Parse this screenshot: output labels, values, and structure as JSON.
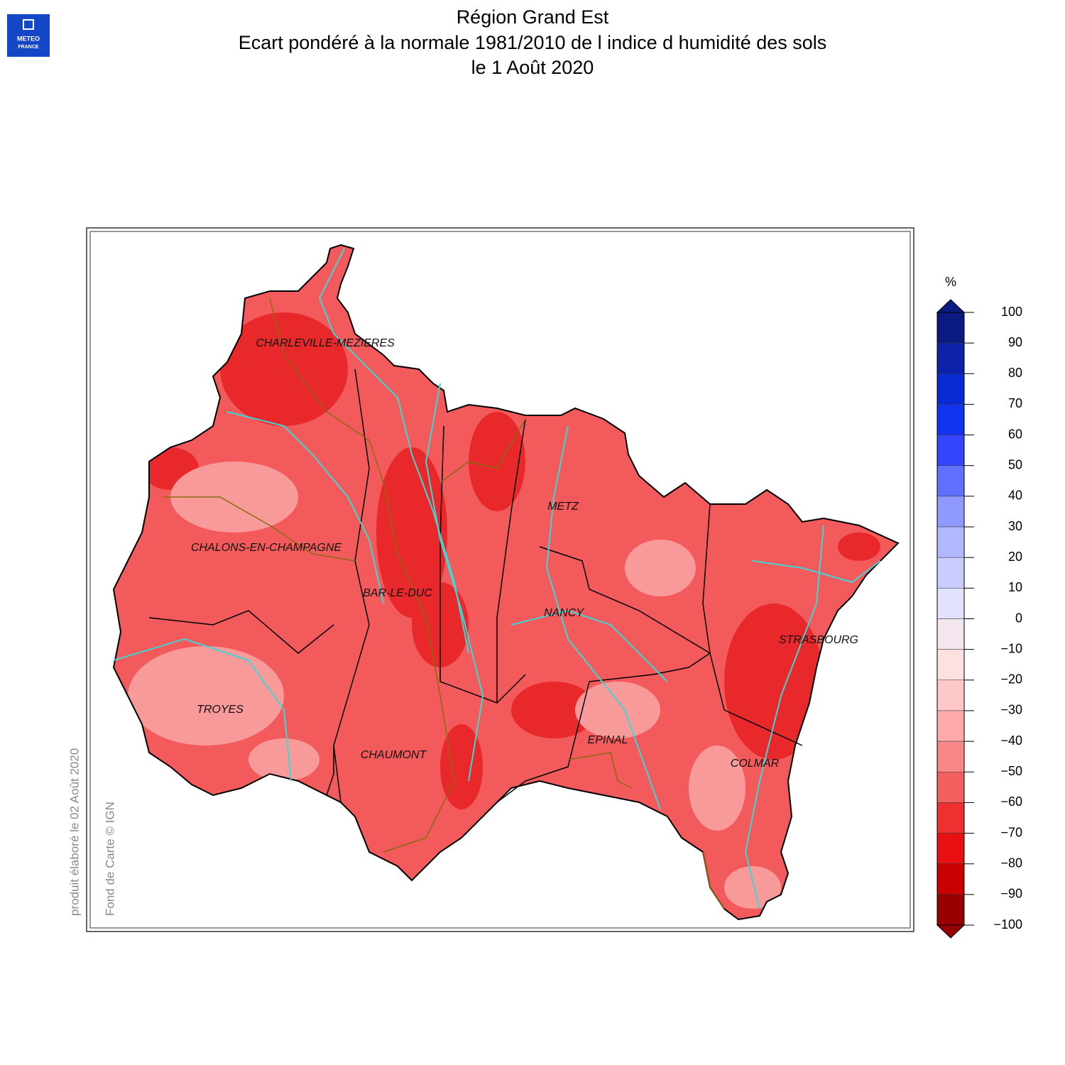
{
  "header": {
    "logo": [
      "METEO",
      "FRANCE"
    ],
    "title": [
      "Région Grand Est",
      "Ecart pondéré à la normale 1981/2010 de l indice d humidité des sols",
      "le 1 Août 2020"
    ]
  },
  "map": {
    "cities": [
      "CHARLEVILLE-MEZIERES",
      "METZ",
      "CHALONS-EN-CHAMPAGNE",
      "BAR-LE-DUC",
      "NANCY",
      "STRASBOURG",
      "TROYES",
      "EPINAL",
      "CHAUMONT",
      "COLMAR"
    ],
    "base_color": "#f25a5c",
    "dark_color": "#e8282a",
    "light_color": "#f99a9a",
    "border_color": "#000000",
    "river_color": "#3fd6d6",
    "basin_color": "#8a6a10"
  },
  "colorbar": {
    "unit": "%",
    "ticks": [
      100,
      90,
      80,
      70,
      60,
      50,
      40,
      30,
      20,
      10,
      0,
      {
        "value": -10,
        "label": "−10"
      },
      {
        "value": -20,
        "label": "−20"
      },
      {
        "value": -30,
        "label": "−30"
      },
      {
        "value": -40,
        "label": "−40"
      },
      {
        "value": -50,
        "label": "−50"
      },
      {
        "value": -60,
        "label": "−60"
      },
      {
        "value": -70,
        "label": "−70"
      },
      {
        "value": -80,
        "label": "−80"
      },
      {
        "value": -90,
        "label": "−90"
      },
      {
        "value": -100,
        "label": "−100"
      }
    ],
    "colors": [
      "#0a1a80",
      "#0c22a8",
      "#0a2ad4",
      "#1034f0",
      "#3444ff",
      "#6070ff",
      "#9099ff",
      "#b0b8ff",
      "#c8ccff",
      "#e2e4ff",
      "#f3e6ee",
      "#ffe0e0",
      "#ffc8c8",
      "#ffaaaa",
      "#f88888",
      "#f26060",
      "#ee3030",
      "#e81010",
      "#c80000",
      "#960000"
    ]
  },
  "credits": {
    "produced": "produit élaboré le 02 Août 2020",
    "basemap": "Fond de Carte © IGN"
  }
}
